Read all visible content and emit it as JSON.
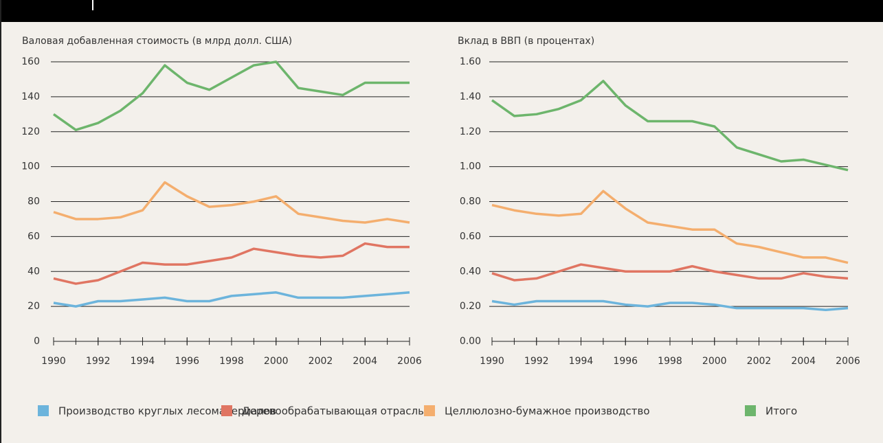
{
  "chart_data": [
    {
      "type": "line",
      "title": "Валовая добавленная стоимость (в млрд долл. США)",
      "x": [
        1990,
        1991,
        1992,
        1993,
        1994,
        1995,
        1996,
        1997,
        1998,
        1999,
        2000,
        2001,
        2002,
        2003,
        2004,
        2005,
        2006
      ],
      "xlim": [
        1990,
        2006
      ],
      "xticks": [
        1990,
        1992,
        1994,
        1996,
        1998,
        2000,
        2002,
        2004,
        2006
      ],
      "ylim": [
        0,
        160
      ],
      "yticks": [
        0,
        20,
        40,
        60,
        80,
        100,
        120,
        140,
        160
      ],
      "grid": true,
      "series": [
        {
          "name": "Производство круглых лесоматериалов",
          "color": "#6cb4dc",
          "values": [
            22,
            20,
            23,
            23,
            24,
            25,
            23,
            23,
            26,
            27,
            28,
            25,
            25,
            25,
            26,
            27,
            28
          ]
        },
        {
          "name": "Деревообрабатывающая отрасль",
          "color": "#e07562",
          "values": [
            36,
            33,
            35,
            40,
            45,
            44,
            44,
            46,
            48,
            53,
            51,
            49,
            48,
            49,
            56,
            54,
            54
          ]
        },
        {
          "name": "Целлюлозно-бумажное производство",
          "color": "#f4ae6e",
          "values": [
            74,
            70,
            70,
            71,
            75,
            91,
            83,
            77,
            78,
            80,
            83,
            73,
            71,
            69,
            68,
            70,
            68
          ]
        },
        {
          "name": "Итого",
          "color": "#6db56c",
          "values": [
            130,
            121,
            125,
            132,
            142,
            158,
            148,
            144,
            151,
            158,
            160,
            145,
            143,
            141,
            148,
            148,
            148
          ]
        }
      ]
    },
    {
      "type": "line",
      "title": "Вклад в ВВП (в процентах)",
      "x": [
        1990,
        1991,
        1992,
        1993,
        1994,
        1995,
        1996,
        1997,
        1998,
        1999,
        2000,
        2001,
        2002,
        2003,
        2004,
        2005,
        2006
      ],
      "xlim": [
        1990,
        2006
      ],
      "xticks": [
        1990,
        1992,
        1994,
        1996,
        1998,
        2000,
        2002,
        2004,
        2006
      ],
      "ylim": [
        0,
        1.6
      ],
      "yticks": [
        {
          "value": 0,
          "label": "0.00"
        },
        {
          "value": 0.2,
          "label": "0.20"
        },
        {
          "value": 0.4,
          "label": "0.40"
        },
        {
          "value": 0.6,
          "label": "0.60"
        },
        {
          "value": 0.8,
          "label": "0.80"
        },
        {
          "value": 1,
          "label": "1.00"
        },
        {
          "value": 1.2,
          "label": "1.20"
        },
        {
          "value": 1.4,
          "label": "1.40"
        },
        {
          "value": 1.6,
          "label": "1.60"
        }
      ],
      "grid": true,
      "series": [
        {
          "color": "#6cb4dc",
          "values": [
            0.23,
            0.21,
            0.23,
            0.23,
            0.23,
            0.23,
            0.21,
            0.2,
            0.22,
            0.22,
            0.21,
            0.19,
            0.19,
            0.19,
            0.19,
            0.18,
            0.19
          ]
        },
        {
          "color": "#e07562",
          "values": [
            0.39,
            0.35,
            0.36,
            0.4,
            0.44,
            0.42,
            0.4,
            0.4,
            0.4,
            0.43,
            0.4,
            0.38,
            0.36,
            0.36,
            0.39,
            0.37,
            0.36
          ]
        },
        {
          "color": "#f4ae6e",
          "values": [
            0.78,
            0.75,
            0.73,
            0.72,
            0.73,
            0.86,
            0.76,
            0.68,
            0.66,
            0.64,
            0.64,
            0.56,
            0.54,
            0.51,
            0.48,
            0.48,
            0.45
          ]
        },
        {
          "color": "#6db56c",
          "values": [
            1.38,
            1.29,
            1.3,
            1.33,
            1.38,
            1.49,
            1.35,
            1.26,
            1.26,
            1.26,
            1.23,
            1.11,
            1.07,
            1.03,
            1.04,
            1.01,
            0.98
          ]
        }
      ]
    }
  ]
}
